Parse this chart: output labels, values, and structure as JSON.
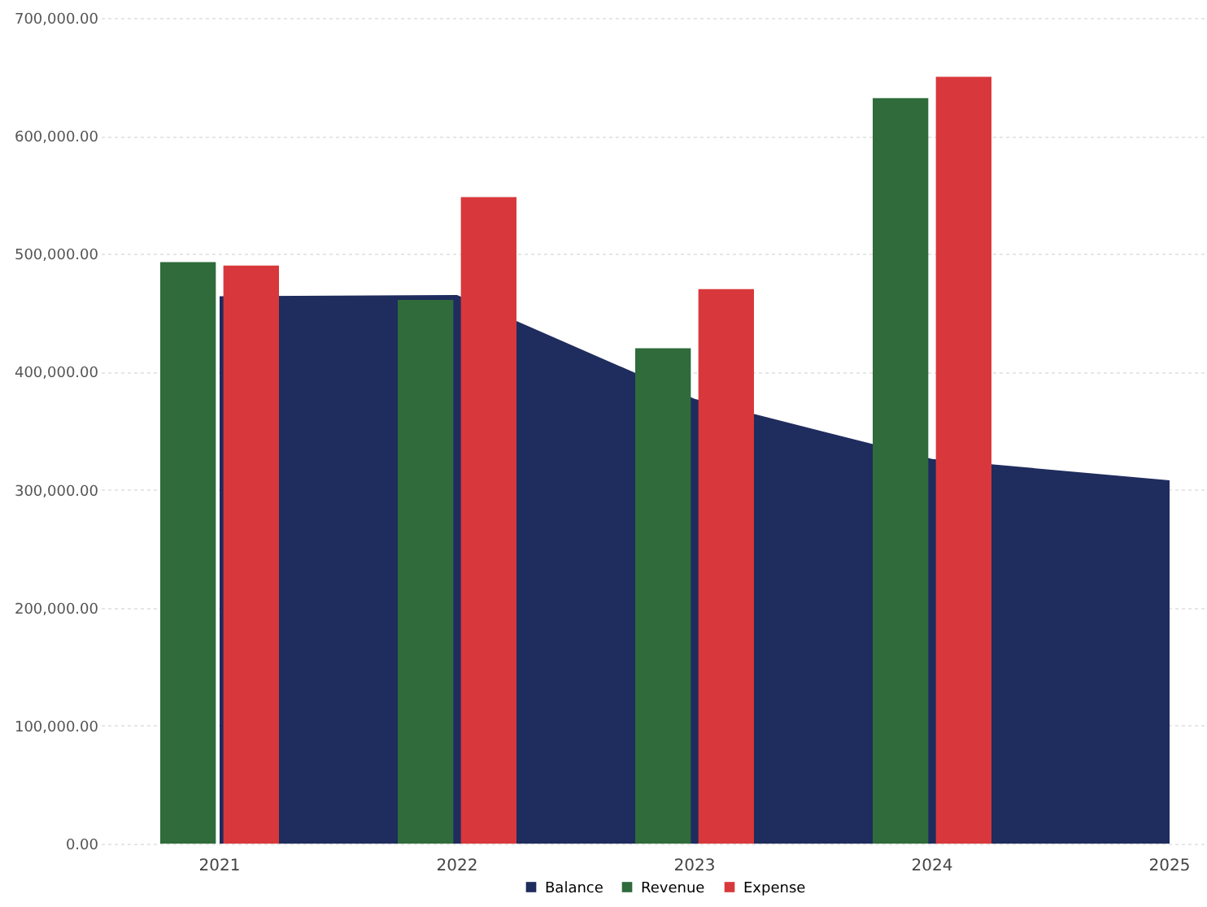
{
  "chart_data": {
    "type": "bar",
    "categories": [
      "2021",
      "2022",
      "2023",
      "2024",
      "2025"
    ],
    "series": [
      {
        "name": "Balance",
        "type": "area",
        "color": "#1f2c5e",
        "values": [
          464000,
          465000,
          377000,
          326000,
          308000
        ]
      },
      {
        "name": "Revenue",
        "color": "#2f6b3b",
        "values": [
          493000,
          461000,
          420000,
          632000,
          null
        ]
      },
      {
        "name": "Expense",
        "color": "#d8383b",
        "values": [
          490000,
          548000,
          470000,
          650000,
          null
        ]
      }
    ],
    "ylim": [
      0,
      700000
    ],
    "yticks": [
      {
        "value": 0,
        "label": "0.00"
      },
      {
        "value": 100000,
        "label": "100,000.00"
      },
      {
        "value": 200000,
        "label": "200,000.00"
      },
      {
        "value": 300000,
        "label": "300,000.00"
      },
      {
        "value": 400000,
        "label": "400,000.00"
      },
      {
        "value": 500000,
        "label": "500,000.00"
      },
      {
        "value": 600000,
        "label": "600,000.00"
      },
      {
        "value": 700000,
        "label": "700,000.00"
      }
    ],
    "grid": "y",
    "legend": "bottom"
  }
}
